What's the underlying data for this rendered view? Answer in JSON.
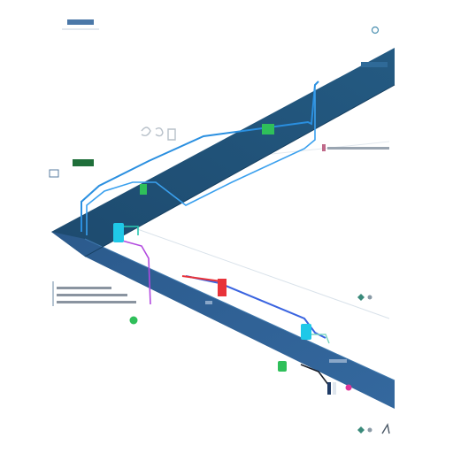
{
  "colors": {
    "background": "#ffffff",
    "band_dark": "#1f4d73",
    "band_mid": "#2a5a86",
    "band_light": "#34689a",
    "wire_blue": "#2a8fe0",
    "wire_violet": "#7a3cff",
    "accent_red": "#e8333a",
    "accent_cyan": "#1fc8e8",
    "accent_green": "#2fbf5a",
    "accent_magenta": "#e0349a",
    "label_grey": "#8a94a0",
    "frame_grey": "#9aa7b4"
  },
  "icons": {
    "corner_dot": "circle-icon",
    "small_box": "square-icon",
    "arrow": "arrow-icon",
    "diamond": "diamond-icon"
  }
}
